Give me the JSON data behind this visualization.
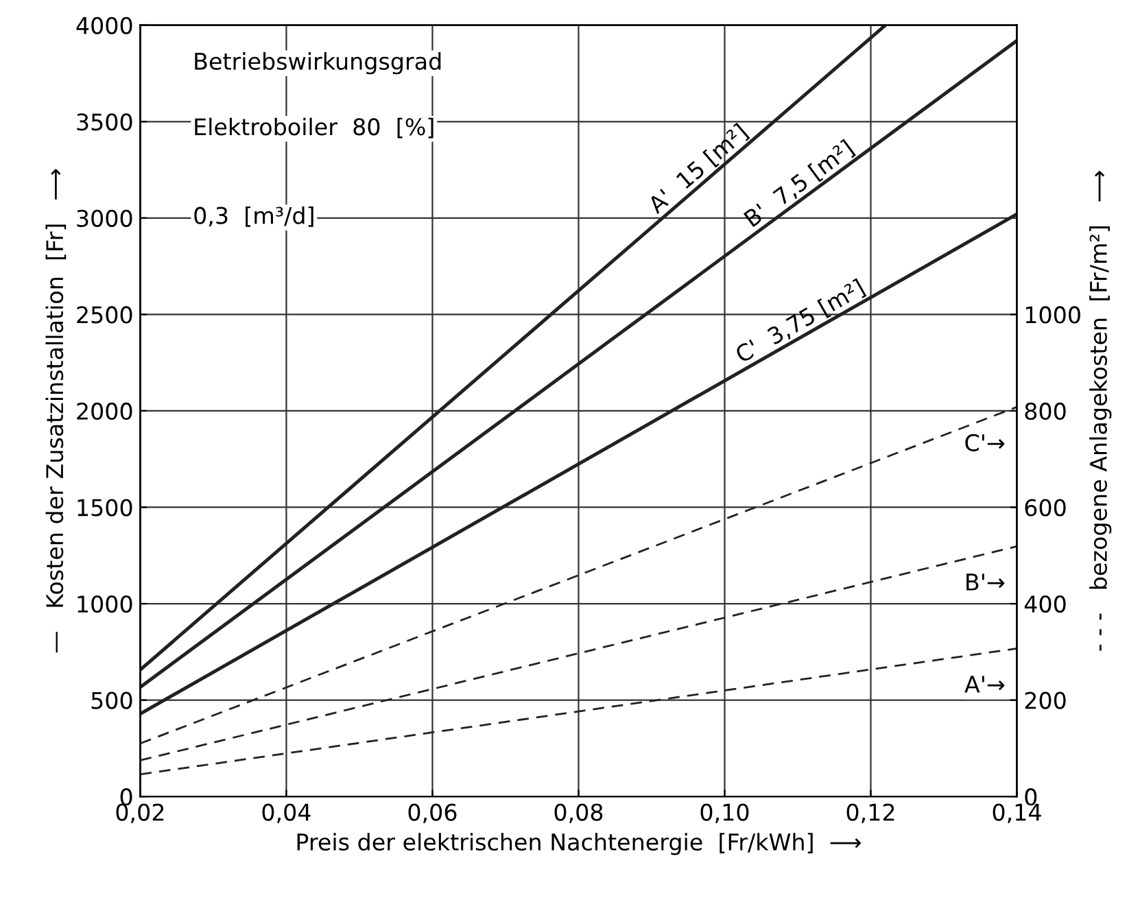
{
  "chart_data": {
    "type": "line",
    "xlabel": "Preis der elektrischen Nachtenergie  [Fr/kWh]  ⟶",
    "ylabel": "—   Kosten der Zusatzinstallation  [Fr]   ⟶",
    "y2label": "- - -   bezogene Anlagekosten  [Fr/m²]   ⟶",
    "annotations": [
      "Betriebswirkungsgrad",
      "Elektroboiler  80  [%]",
      "0,3  [m³/d]"
    ],
    "xlim": [
      0.02,
      0.14
    ],
    "xticks": [
      {
        "value": 0.02,
        "label": "0,02"
      },
      {
        "value": 0.04,
        "label": "0,04"
      },
      {
        "value": 0.06,
        "label": "0,06"
      },
      {
        "value": 0.08,
        "label": "0,08"
      },
      {
        "value": 0.1,
        "label": "0,10"
      },
      {
        "value": 0.12,
        "label": "0,12"
      },
      {
        "value": 0.14,
        "label": "0,14"
      }
    ],
    "ylim": [
      0,
      4000
    ],
    "yticks": [
      0,
      500,
      1000,
      1500,
      2000,
      2500,
      3000,
      3500,
      4000
    ],
    "y2lim": [
      0,
      1600
    ],
    "y2ticks": [
      0,
      200,
      400,
      600,
      800,
      1000
    ],
    "grid": true,
    "legend": false,
    "marker": "none",
    "series": [
      {
        "name": "A'  15 [m²]",
        "color": "#222222",
        "x": [
          0.02,
          0.122
        ],
        "values": [
          657,
          4000
        ],
        "line_style": "solid"
      },
      {
        "name": "B'  7,5 [m²]",
        "color": "#222222",
        "x": [
          0.02,
          0.14
        ],
        "values": [
          567,
          3920
        ],
        "line_style": "solid"
      },
      {
        "name": "C'  3,75 [m²]",
        "color": "#222222",
        "x": [
          0.02,
          0.14
        ],
        "values": [
          429,
          3020
        ],
        "line_style": "solid"
      },
      {
        "name": "C'→",
        "color": "#222222",
        "x": [
          0.02,
          0.14
        ],
        "values": [
          110,
          808
        ],
        "line_style": "dashed",
        "axis": "y2"
      },
      {
        "name": "B'→",
        "color": "#222222",
        "x": [
          0.02,
          0.14
        ],
        "values": [
          75,
          519
        ],
        "line_style": "dashed",
        "axis": "y2"
      },
      {
        "name": "A'→",
        "color": "#222222",
        "x": [
          0.02,
          0.14
        ],
        "values": [
          46,
          307
        ],
        "line_style": "dashed",
        "axis": "y2"
      }
    ]
  }
}
